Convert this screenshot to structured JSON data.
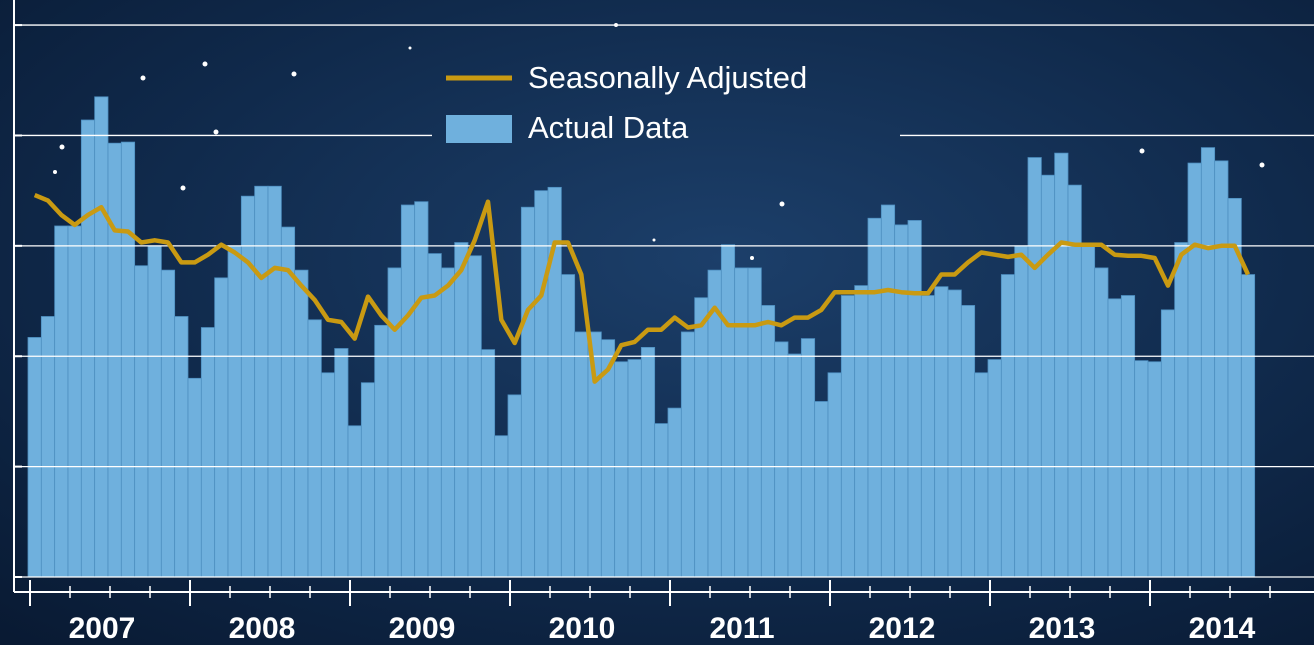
{
  "chart_data": {
    "type": "bar-line",
    "series": [
      {
        "name": "Seasonally Adjusted",
        "type": "line",
        "color": "#c99a12",
        "values": [
          3.46,
          3.41,
          3.28,
          3.19,
          3.28,
          3.35,
          3.14,
          3.13,
          3.03,
          3.05,
          3.03,
          2.85,
          2.85,
          2.92,
          3.01,
          2.94,
          2.85,
          2.71,
          2.8,
          2.78,
          2.64,
          2.51,
          2.33,
          2.31,
          2.16,
          2.54,
          2.37,
          2.24,
          2.37,
          2.53,
          2.55,
          2.64,
          2.78,
          3.05,
          3.4,
          2.33,
          2.12,
          2.42,
          2.55,
          3.03,
          3.03,
          2.74,
          1.77,
          1.88,
          2.1,
          2.13,
          2.24,
          2.24,
          2.35,
          2.26,
          2.28,
          2.44,
          2.28,
          2.28,
          2.28,
          2.31,
          2.28,
          2.35,
          2.35,
          2.42,
          2.58,
          2.58,
          2.58,
          2.58,
          2.6,
          2.58,
          2.57,
          2.57,
          2.74,
          2.74,
          2.85,
          2.94,
          2.92,
          2.9,
          2.92,
          2.8,
          2.92,
          3.03,
          3.01,
          3.01,
          3.01,
          2.92,
          2.91,
          2.91,
          2.89,
          2.64,
          2.92,
          3.01,
          2.98,
          3.0,
          3.0,
          2.74
        ]
      },
      {
        "name": "Actual Data",
        "type": "bar",
        "color": "#6fb0dd",
        "values": [
          2.17,
          2.36,
          3.18,
          3.18,
          4.14,
          4.35,
          3.93,
          3.94,
          2.82,
          3.0,
          2.78,
          2.36,
          1.8,
          2.26,
          2.71,
          3.0,
          3.45,
          3.54,
          3.54,
          3.17,
          2.78,
          2.33,
          1.85,
          2.07,
          1.37,
          1.76,
          2.28,
          2.8,
          3.37,
          3.4,
          2.93,
          2.8,
          3.03,
          2.91,
          2.06,
          1.28,
          1.65,
          3.35,
          3.5,
          3.53,
          2.74,
          2.22,
          2.22,
          2.15,
          1.95,
          1.97,
          2.08,
          1.39,
          1.53,
          2.22,
          2.53,
          2.78,
          3.01,
          2.8,
          2.8,
          2.46,
          2.13,
          2.02,
          2.16,
          1.59,
          1.85,
          2.55,
          2.64,
          3.25,
          3.37,
          3.19,
          3.23,
          2.55,
          2.63,
          2.6,
          2.46,
          1.85,
          1.97,
          2.74,
          3.0,
          3.8,
          3.64,
          3.84,
          3.55,
          3.01,
          2.8,
          2.52,
          2.55,
          1.96,
          1.95,
          2.42,
          3.03,
          3.75,
          3.89,
          3.77,
          3.43,
          2.74
        ]
      }
    ],
    "xlim": [
      2007,
      2015
    ],
    "xticks": [
      2007,
      2008,
      2009,
      2010,
      2011,
      2012,
      2013,
      2014
    ],
    "ylim": [
      0,
      5.2
    ],
    "yticks": [
      0,
      1,
      2,
      3,
      4,
      5
    ],
    "grid": true,
    "legend": "top"
  }
}
